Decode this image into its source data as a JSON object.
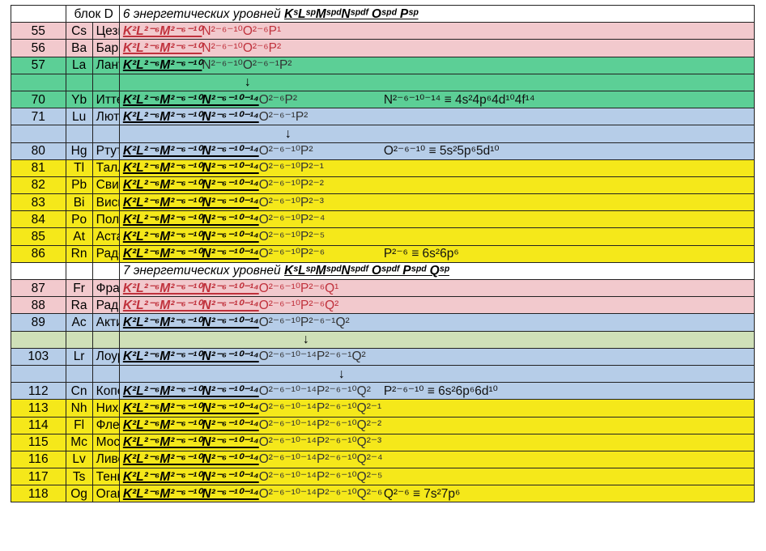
{
  "header_block": "блок D",
  "rows": [
    {
      "num": "",
      "sym": "",
      "name": "",
      "core": "6 энергетических уровней",
      "tail": "KˢLˢᵖMˢᵖᵈNˢᵖᵈᶠ Oˢᵖᵈ Pˢᵖ",
      "ann": ""
    },
    {
      "num": "55",
      "sym": "Cs",
      "name": "Цезий",
      "core": "K²L²⁻⁶M²⁻⁶⁻¹⁰",
      "tail": "N²⁻⁶⁻¹⁰O²⁻⁶P¹",
      "ann": ""
    },
    {
      "num": "56",
      "sym": "Ba",
      "name": "Барий",
      "core": "K²L²⁻⁶M²⁻⁶⁻¹⁰",
      "tail": "N²⁻⁶⁻¹⁰O²⁻⁶P²",
      "ann": ""
    },
    {
      "num": "57",
      "sym": "La",
      "name": "Лантан",
      "core": "K²L²⁻⁶M²⁻⁶⁻¹⁰",
      "tail": "N²⁻⁶⁻¹⁰O²⁻⁶⁻¹P²",
      "ann": ""
    },
    {
      "num": "",
      "sym": "",
      "name": "",
      "core": "↓",
      "tail": "",
      "ann": ""
    },
    {
      "num": "70",
      "sym": "Yb",
      "name": "Иттербий",
      "core": "K²L²⁻⁶M²⁻⁶⁻¹⁰N²⁻⁶⁻¹⁰⁻¹⁴",
      "tail": "O²⁻⁶P²",
      "ann": "N²⁻⁶⁻¹⁰⁻¹⁴ ≡ 4s²4p⁶4d¹⁰4f¹⁴"
    },
    {
      "num": "71",
      "sym": "Lu",
      "name": "Лютеций",
      "core": "K²L²⁻⁶M²⁻⁶⁻¹⁰N²⁻⁶⁻¹⁰⁻¹⁴",
      "tail": "O²⁻⁶⁻¹P²",
      "ann": ""
    },
    {
      "num": "",
      "sym": "",
      "name": "",
      "core": "↓",
      "tail": "",
      "ann": ""
    },
    {
      "num": "80",
      "sym": "Hg",
      "name": "Ртуть",
      "core": "K²L²⁻⁶M²⁻⁶⁻¹⁰N²⁻⁶⁻¹⁰⁻¹⁴",
      "tail": "O²⁻⁶⁻¹⁰P²",
      "ann": "O²⁻⁶⁻¹⁰ ≡ 5s²5p⁶5d¹⁰"
    },
    {
      "num": "81",
      "sym": "Tl",
      "name": "Таллий",
      "core": "K²L²⁻⁶M²⁻⁶⁻¹⁰N²⁻⁶⁻¹⁰⁻¹⁴",
      "tail": "O²⁻⁶⁻¹⁰P²⁻¹",
      "ann": ""
    },
    {
      "num": "82",
      "sym": "Pb",
      "name": "Свинец",
      "core": "K²L²⁻⁶M²⁻⁶⁻¹⁰N²⁻⁶⁻¹⁰⁻¹⁴",
      "tail": "O²⁻⁶⁻¹⁰P²⁻²",
      "ann": ""
    },
    {
      "num": "83",
      "sym": "Bi",
      "name": "Висмут",
      "core": "K²L²⁻⁶M²⁻⁶⁻¹⁰N²⁻⁶⁻¹⁰⁻¹⁴",
      "tail": "O²⁻⁶⁻¹⁰P²⁻³",
      "ann": ""
    },
    {
      "num": "84",
      "sym": "Po",
      "name": "Полоний",
      "core": "K²L²⁻⁶M²⁻⁶⁻¹⁰N²⁻⁶⁻¹⁰⁻¹⁴",
      "tail": "O²⁻⁶⁻¹⁰P²⁻⁴",
      "ann": ""
    },
    {
      "num": "85",
      "sym": "At",
      "name": "Астат",
      "core": "K²L²⁻⁶M²⁻⁶⁻¹⁰N²⁻⁶⁻¹⁰⁻¹⁴",
      "tail": "O²⁻⁶⁻¹⁰P²⁻⁵",
      "ann": ""
    },
    {
      "num": "86",
      "sym": "Rn",
      "name": "Радон",
      "core": "K²L²⁻⁶M²⁻⁶⁻¹⁰N²⁻⁶⁻¹⁰⁻¹⁴",
      "tail": "O²⁻⁶⁻¹⁰P²⁻⁶",
      "ann": "P²⁻⁶ ≡ 6s²6p⁶"
    },
    {
      "num": "",
      "sym": "",
      "name": "",
      "core": "7 энергетических уровней",
      "tail": "KˢLˢᵖMˢᵖᵈNˢᵖᵈᶠ Oˢᵖᵈᶠ Pˢᵖᵈ Qˢᵖ",
      "ann": ""
    },
    {
      "num": "87",
      "sym": "Fr",
      "name": "Франций",
      "core": "K²L²⁻⁶M²⁻⁶⁻¹⁰N²⁻⁶⁻¹⁰⁻¹⁴",
      "tail": "O²⁻⁶⁻¹⁰P²⁻⁶Q¹",
      "ann": ""
    },
    {
      "num": "88",
      "sym": "Ra",
      "name": "Радий",
      "core": "K²L²⁻⁶M²⁻⁶⁻¹⁰N²⁻⁶⁻¹⁰⁻¹⁴",
      "tail": "O²⁻⁶⁻¹⁰P²⁻⁶Q²",
      "ann": ""
    },
    {
      "num": "89",
      "sym": "Ac",
      "name": "Актиний",
      "core": "K²L²⁻⁶M²⁻⁶⁻¹⁰N²⁻⁶⁻¹⁰⁻¹⁴",
      "tail": "O²⁻⁶⁻¹⁰P²⁻⁶⁻¹Q²",
      "ann": ""
    },
    {
      "num": "",
      "sym": "",
      "name": "",
      "core": "↓",
      "tail": "",
      "ann": ""
    },
    {
      "num": "103",
      "sym": "Lr",
      "name": "Лоуренсий",
      "core": "K²L²⁻⁶M²⁻⁶⁻¹⁰N²⁻⁶⁻¹⁰⁻¹⁴",
      "tail": "O²⁻⁶⁻¹⁰⁻¹⁴P²⁻⁶⁻¹Q²",
      "ann": ""
    },
    {
      "num": "",
      "sym": "",
      "name": "",
      "core": "↓",
      "tail": "",
      "ann": ""
    },
    {
      "num": "112",
      "sym": "Cn",
      "name": "Коперниций",
      "core": "K²L²⁻⁶M²⁻⁶⁻¹⁰N²⁻⁶⁻¹⁰⁻¹⁴",
      "tail": "O²⁻⁶⁻¹⁰⁻¹⁴P²⁻⁶⁻¹⁰Q²",
      "ann": "P²⁻⁶⁻¹⁰ ≡ 6s²6p⁶6d¹⁰"
    },
    {
      "num": "113",
      "sym": "Nh",
      "name": "Нихоний",
      "core": "K²L²⁻⁶M²⁻⁶⁻¹⁰N²⁻⁶⁻¹⁰⁻¹⁴",
      "tail": "O²⁻⁶⁻¹⁰⁻¹⁴P²⁻⁶⁻¹⁰Q²⁻¹",
      "ann": ""
    },
    {
      "num": "114",
      "sym": "Fl",
      "name": "Флеровий",
      "core": "K²L²⁻⁶M²⁻⁶⁻¹⁰N²⁻⁶⁻¹⁰⁻¹⁴",
      "tail": "O²⁻⁶⁻¹⁰⁻¹⁴P²⁻⁶⁻¹⁰Q²⁻²",
      "ann": ""
    },
    {
      "num": "115",
      "sym": "Mc",
      "name": "Московий",
      "core": "K²L²⁻⁶M²⁻⁶⁻¹⁰N²⁻⁶⁻¹⁰⁻¹⁴",
      "tail": "O²⁻⁶⁻¹⁰⁻¹⁴P²⁻⁶⁻¹⁰Q²⁻³",
      "ann": ""
    },
    {
      "num": "116",
      "sym": "Lv",
      "name": "Ливерморий",
      "core": "K²L²⁻⁶M²⁻⁶⁻¹⁰N²⁻⁶⁻¹⁰⁻¹⁴",
      "tail": "O²⁻⁶⁻¹⁰⁻¹⁴P²⁻⁶⁻¹⁰Q²⁻⁴",
      "ann": ""
    },
    {
      "num": "117",
      "sym": "Ts",
      "name": "Теннессин",
      "core": "K²L²⁻⁶M²⁻⁶⁻¹⁰N²⁻⁶⁻¹⁰⁻¹⁴",
      "tail": "O²⁻⁶⁻¹⁰⁻¹⁴P²⁻⁶⁻¹⁰Q²⁻⁵",
      "ann": ""
    },
    {
      "num": "118",
      "sym": "Og",
      "name": "Оганесон",
      "core": "K²L²⁻⁶M²⁻⁶⁻¹⁰N²⁻⁶⁻¹⁰⁻¹⁴",
      "tail": "O²⁻⁶⁻¹⁰⁻¹⁴P²⁻⁶⁻¹⁰Q²⁻⁶",
      "ann": "Q²⁻⁶ ≡ 7s²7p⁶"
    }
  ]
}
